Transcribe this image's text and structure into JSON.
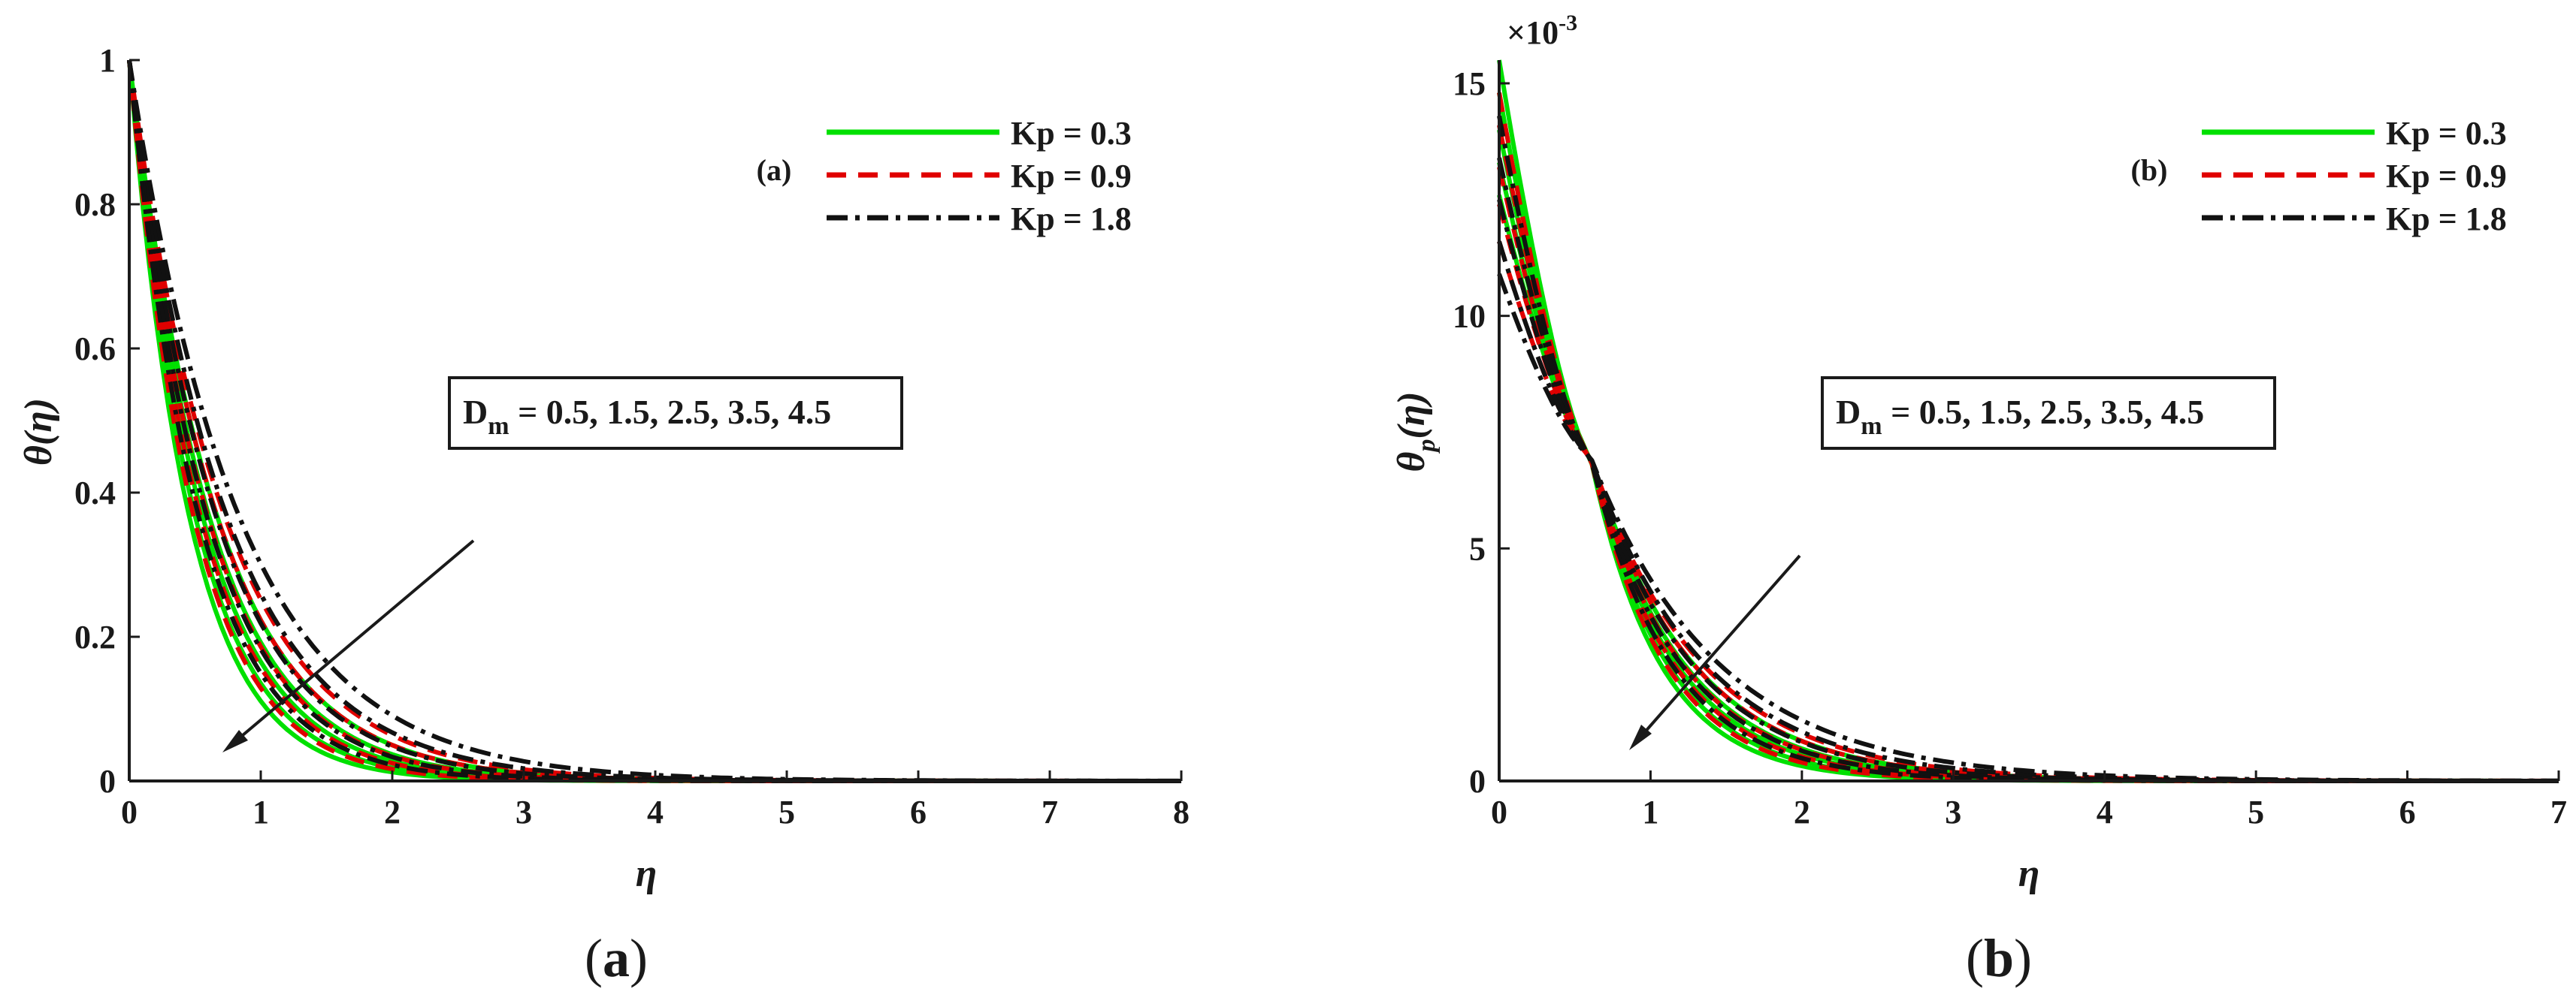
{
  "chart_data": [
    {
      "type": "line",
      "panel_tag": "(a)",
      "caption": "(a)",
      "xlabel": "η",
      "ylabel": "θ(η)",
      "xlim": [
        0,
        8
      ],
      "ylim": [
        0,
        1
      ],
      "xticks": [
        0,
        1,
        2,
        3,
        4,
        5,
        6,
        7,
        8
      ],
      "yticks": [
        0,
        0.2,
        0.4,
        0.6,
        0.8,
        1
      ],
      "ytick_labels": [
        "0",
        "0.2",
        "0.4",
        "0.6",
        "0.8",
        "1"
      ],
      "annotation": {
        "prefix": "D",
        "sub": "m",
        "rest": " = 0.5, 1.5, 2.5, 3.5, 4.5"
      },
      "legend": [
        {
          "label": "Kp = 0.3",
          "color": "#00e000",
          "dash": "solid"
        },
        {
          "label": "Kp = 0.9",
          "color": "#e00000",
          "dash": "dashed"
        },
        {
          "label": "Kp = 1.8",
          "color": "#111111",
          "dash": "dashdot"
        }
      ],
      "curve_model": "exp",
      "y0": 1.0,
      "decay_rates": {
        "Kp = 0.3": [
          2.2,
          2.0,
          1.8,
          1.65,
          1.5
        ],
        "Kp = 0.9": [
          2.05,
          1.85,
          1.68,
          1.5,
          1.38
        ],
        "Kp = 1.8": [
          1.9,
          1.7,
          1.52,
          1.35,
          1.2
        ]
      }
    },
    {
      "type": "line",
      "panel_tag": "(b)",
      "caption": "(b)",
      "xlabel": "η",
      "ylabel": "θp(η)",
      "ylabel_main": "θ",
      "ylabel_sub": "p",
      "ylabel_tail": "(η)",
      "y_scale_label": "×10",
      "y_scale_exp": "-3",
      "xlim": [
        0,
        7
      ],
      "ylim": [
        0,
        15.5
      ],
      "xticks": [
        0,
        1,
        2,
        3,
        4,
        5,
        6,
        7
      ],
      "yticks": [
        0,
        5,
        10,
        15
      ],
      "ytick_labels": [
        "0",
        "5",
        "10",
        "15"
      ],
      "annotation": {
        "prefix": "D",
        "sub": "m",
        "rest": " = 0.5, 1.5, 2.5, 3.5, 4.5"
      },
      "legend": [
        {
          "label": "Kp = 0.3",
          "color": "#00e000",
          "dash": "solid"
        },
        {
          "label": "Kp = 0.9",
          "color": "#e00000",
          "dash": "dashed"
        },
        {
          "label": "Kp = 1.8",
          "color": "#111111",
          "dash": "dashdot"
        }
      ],
      "curve_model": "exp-cross",
      "cross_point": [
        0.6,
        7.0
      ],
      "series_params": {
        "Kp = 0.3": {
          "y0": [
            15.5,
            14.8,
            14.0,
            13.3,
            12.6
          ],
          "decay": [
            2.2,
            2.0,
            1.8,
            1.65,
            1.5
          ]
        },
        "Kp = 0.9": {
          "y0": [
            14.8,
            14.1,
            13.2,
            12.4,
            11.6
          ],
          "decay": [
            2.05,
            1.85,
            1.68,
            1.5,
            1.38
          ]
        },
        "Kp = 1.8": {
          "y0": [
            14.3,
            13.4,
            12.5,
            11.6,
            10.9
          ],
          "decay": [
            1.9,
            1.7,
            1.52,
            1.35,
            1.2
          ]
        }
      }
    }
  ]
}
